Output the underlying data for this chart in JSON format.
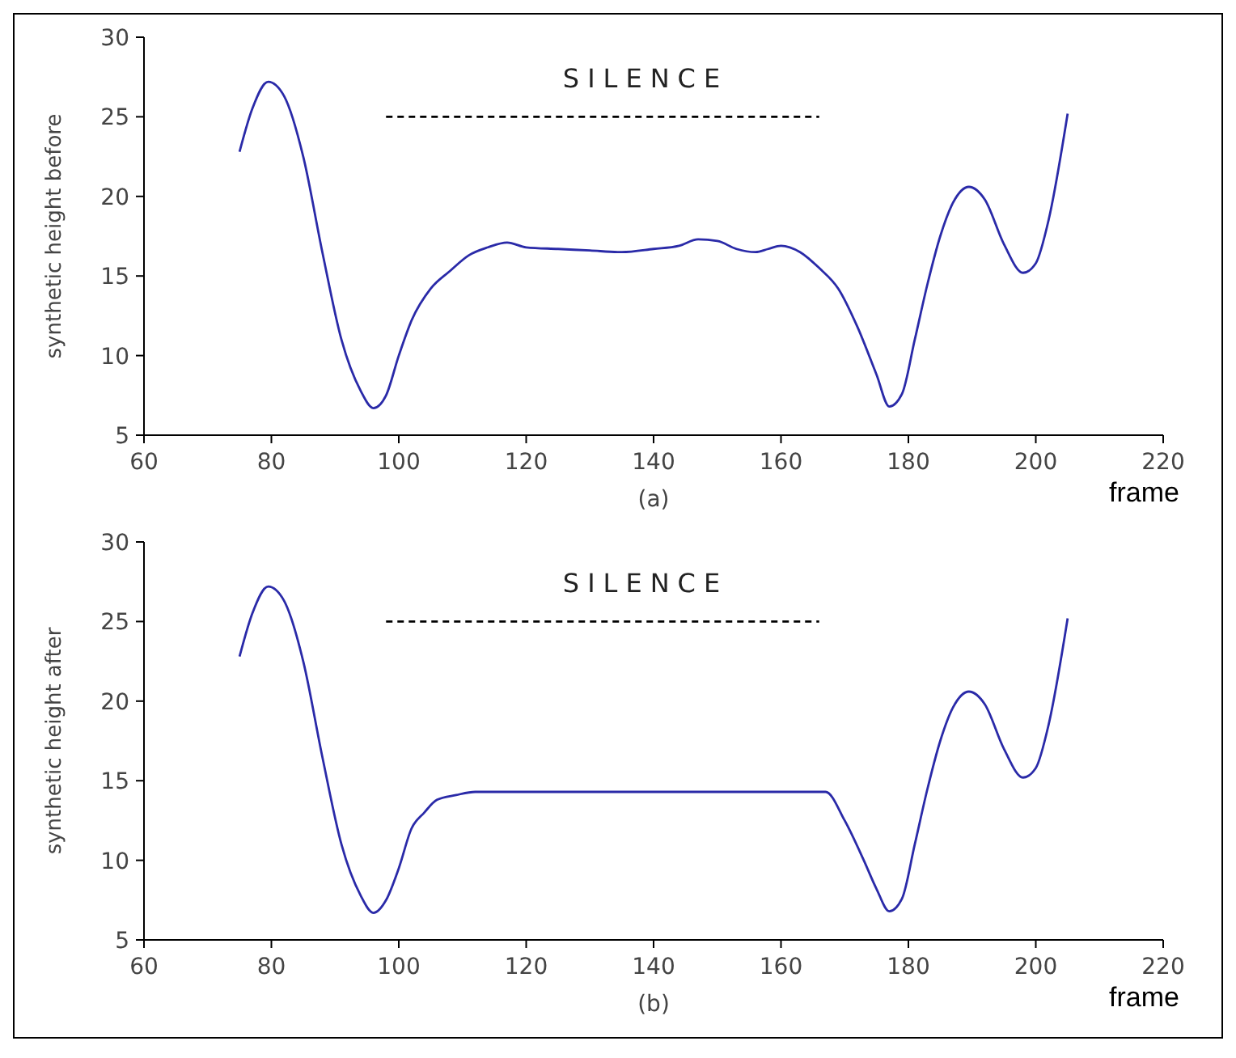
{
  "chart_data": [
    {
      "type": "line",
      "xlim": [
        60,
        220
      ],
      "ylim": [
        5,
        30
      ],
      "xticks": [
        60,
        80,
        100,
        120,
        140,
        160,
        180,
        200,
        220
      ],
      "yticks": [
        5,
        10,
        15,
        20,
        25,
        30
      ],
      "xlabel": "frame",
      "ylabel": "synthetic height before",
      "annotations": [
        "SILENCE",
        "(a)"
      ],
      "series": [
        {
          "color": "#2a2aa8",
          "x": [
            75,
            77,
            79.5,
            82,
            85,
            88,
            91,
            94,
            96,
            98,
            100,
            102,
            105,
            108,
            111,
            114,
            117,
            120,
            125,
            130,
            135,
            140,
            144,
            147,
            150,
            153,
            156,
            158,
            160,
            163,
            166,
            169,
            172,
            175,
            177,
            179,
            181,
            183,
            185,
            187,
            189.5,
            192,
            195,
            198,
            200,
            202,
            205
          ],
          "values": [
            22.8,
            25.5,
            27.2,
            26.3,
            22.5,
            16.5,
            11,
            7.8,
            6.7,
            7.5,
            10,
            12.2,
            14.2,
            15.3,
            16.3,
            16.8,
            17.1,
            16.8,
            16.7,
            16.6,
            16.5,
            16.7,
            16.9,
            17.3,
            17.2,
            16.7,
            16.5,
            16.7,
            16.9,
            16.5,
            15.5,
            14.2,
            11.8,
            8.8,
            6.8,
            7.6,
            11,
            14.5,
            17.5,
            19.6,
            20.6,
            19.8,
            17,
            15.2,
            15.8,
            18.5,
            25.2
          ]
        },
        {
          "color": "#000000",
          "line_style": "dashed",
          "x": [
            98,
            166
          ],
          "values": [
            25,
            25
          ]
        }
      ]
    },
    {
      "type": "line",
      "xlim": [
        60,
        220
      ],
      "ylim": [
        5,
        30
      ],
      "xticks": [
        60,
        80,
        100,
        120,
        140,
        160,
        180,
        200,
        220
      ],
      "yticks": [
        5,
        10,
        15,
        20,
        25,
        30
      ],
      "xlabel": "frame",
      "ylabel": "synthetic height after",
      "annotations": [
        "SILENCE",
        "(b)"
      ],
      "series": [
        {
          "color": "#2a2aa8",
          "x": [
            75,
            77,
            79.5,
            82,
            85,
            88,
            91,
            94,
            96,
            98,
            100,
            102,
            104,
            106,
            109,
            112,
            167,
            170,
            173,
            175,
            177,
            179,
            181,
            183,
            185,
            187,
            189.5,
            192,
            195,
            198,
            200,
            202,
            205
          ],
          "values": [
            22.8,
            25.5,
            27.2,
            26.3,
            22.5,
            16.5,
            11,
            7.8,
            6.7,
            7.5,
            9.5,
            12,
            13,
            13.8,
            14.1,
            14.3,
            14.3,
            12.5,
            10,
            8.2,
            6.8,
            7.6,
            11,
            14.5,
            17.5,
            19.6,
            20.6,
            19.8,
            17,
            15.2,
            15.8,
            18.5,
            25.2
          ]
        },
        {
          "color": "#000000",
          "line_style": "dashed",
          "x": [
            98,
            166
          ],
          "values": [
            25,
            25
          ]
        }
      ]
    }
  ]
}
